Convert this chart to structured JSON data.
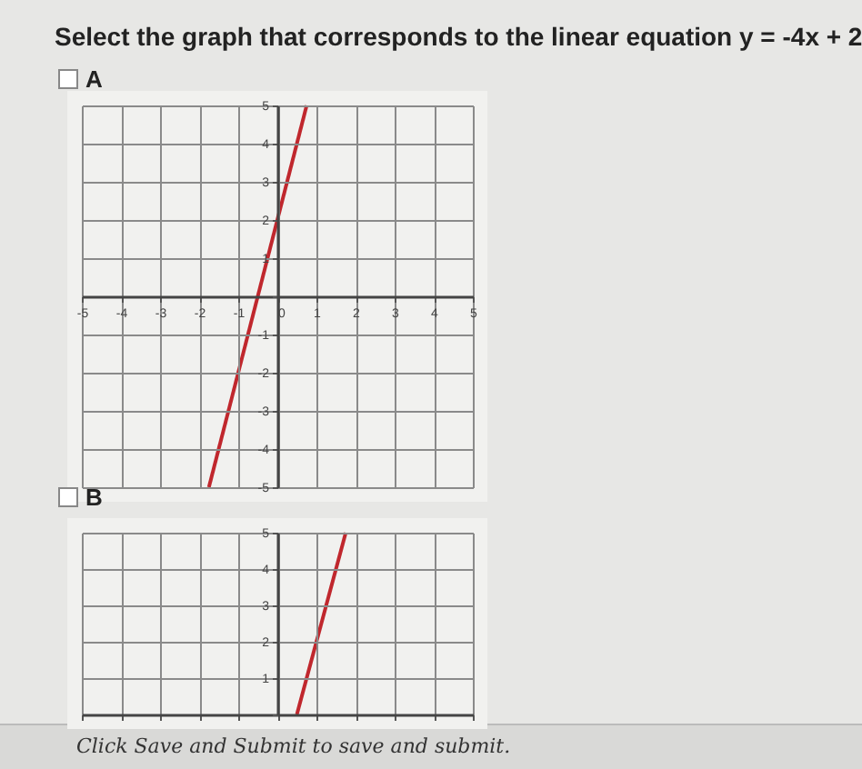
{
  "chart_data": [
    {
      "type": "line",
      "title": "Select the graph that corresponds to the linear equation y = -4x + 2",
      "subtitle": "A",
      "xlim": [
        -5,
        5
      ],
      "ylim": [
        -5,
        5
      ],
      "xticks": [
        -5,
        -4,
        -3,
        -2,
        -1,
        0,
        1,
        2,
        3,
        4,
        5
      ],
      "yticks": [
        -5,
        -4,
        -3,
        -2,
        -1,
        {
          "value": 0,
          "label": null
        },
        1,
        2,
        3,
        4,
        5
      ],
      "grid": true,
      "marker": "none",
      "line_style": "solid",
      "series": [
        {
          "color": "#c0272d",
          "x": [
            -1.75,
            0.75
          ],
          "values": [
            -5,
            5
          ]
        }
      ]
    },
    {
      "type": "line",
      "subtitle": "B",
      "xlim": [
        -5,
        5
      ],
      "ylim": [
        0,
        5
      ],
      "xticks": [
        -5,
        -4,
        -3,
        -2,
        -1,
        0,
        1,
        2,
        3,
        4,
        5
      ],
      "yticks": [
        {
          "value": 0,
          "label": null
        },
        1,
        2,
        3,
        4,
        5
      ],
      "tick_labels": "y",
      "grid": true,
      "marker": "none",
      "line_style": "solid",
      "annotations": [
        "Click Save and Submit to save and submit."
      ],
      "series": [
        {
          "color": "#c0272d",
          "x": [
            0.5,
            1.75
          ],
          "values": [
            0,
            5
          ]
        }
      ]
    }
  ]
}
